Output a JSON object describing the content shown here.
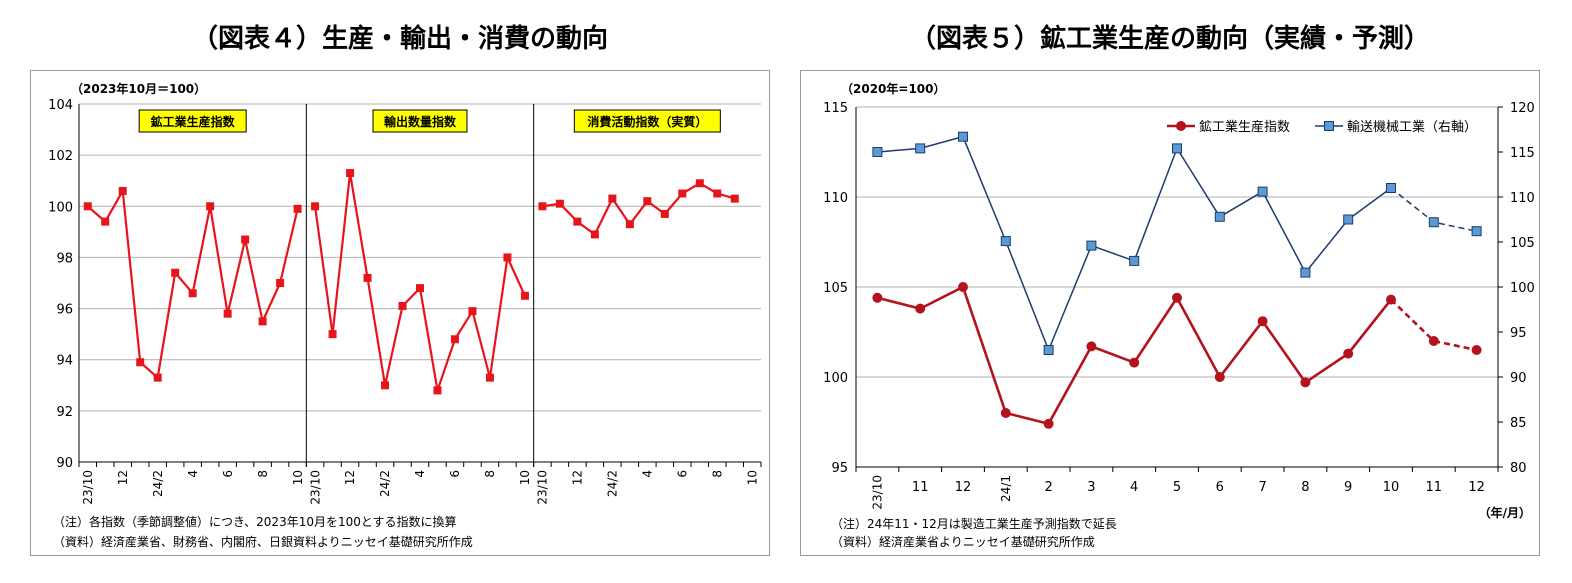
{
  "charts": [
    {
      "type": "line",
      "title": "（図表４）生産・輸出・消費の動向",
      "unit_label": "（2023年10月＝100）",
      "ylim": [
        90,
        104
      ],
      "y_ticks": [
        "90",
        "92",
        "94",
        "96",
        "98",
        "100",
        "102",
        "104"
      ],
      "x_tick_labels": [
        "23/10",
        "",
        "12",
        "",
        "24/2",
        "",
        "4",
        "",
        "6",
        "",
        "8",
        "",
        "10"
      ],
      "panels": [
        {
          "label": "鉱工業生産指数",
          "values": [
            100.0,
            99.4,
            100.6,
            93.9,
            93.3,
            97.4,
            96.6,
            100.0,
            95.8,
            98.7,
            95.5,
            97.0,
            99.9
          ]
        },
        {
          "label": "輸出数量指数",
          "values": [
            100.0,
            95.0,
            101.3,
            97.2,
            93.0,
            96.1,
            96.8,
            92.8,
            94.8,
            95.9,
            93.3,
            98.0,
            96.5
          ]
        },
        {
          "label": "消費活動指数（実質）",
          "values": [
            100.0,
            100.1,
            99.4,
            98.9,
            100.3,
            99.3,
            100.2,
            99.7,
            100.5,
            100.9,
            100.5,
            100.3
          ]
        }
      ],
      "notes": [
        "（注）各指数（季節調整値）につき、2023年10月を100とする指数に換算",
        "（資料）経済産業省、財務省、内閣府、日銀資料よりニッセイ基礎研究所作成"
      ],
      "colors": {
        "series": "#e8141c",
        "label_bg": "#ffff00"
      }
    },
    {
      "type": "line",
      "title": "（図表５）鉱工業生産の動向（実績・予測）",
      "unit_label": "（2020年=100）",
      "ylim_left": [
        95,
        115
      ],
      "ylim_right": [
        80,
        120
      ],
      "y_ticks_left": [
        "95",
        "100",
        "105",
        "110",
        "115"
      ],
      "y_ticks_right": [
        "80",
        "85",
        "90",
        "95",
        "100",
        "105",
        "110",
        "115",
        "120"
      ],
      "categories": [
        "23/10",
        "11",
        "12",
        "24/1",
        "2",
        "3",
        "4",
        "5",
        "6",
        "7",
        "8",
        "9",
        "10",
        "11",
        "12"
      ],
      "x_axis_unit": "（年/月）",
      "forecast_from_index": 12,
      "series": [
        {
          "name": "鉱工業生産指数",
          "axis": "left",
          "color": "#b4131e",
          "values": [
            104.4,
            103.8,
            105.0,
            98.0,
            97.4,
            101.7,
            100.8,
            104.4,
            100.0,
            103.1,
            99.7,
            101.3,
            104.3,
            102.0,
            101.5
          ]
        },
        {
          "name": "輸送機械工業（右軸）",
          "axis": "right",
          "color": "#1f3a6e",
          "marker_fill": "#5b9bd5",
          "values": [
            115.0,
            115.4,
            116.7,
            105.1,
            93.0,
            104.6,
            102.9,
            115.4,
            107.8,
            110.6,
            101.6,
            107.5,
            111.0,
            107.2,
            106.2
          ]
        }
      ],
      "notes": [
        "（注）24年11・12月は製造工業生産予測指数で延長",
        "（資料）経済産業省よりニッセイ基礎研究所作成"
      ]
    }
  ]
}
